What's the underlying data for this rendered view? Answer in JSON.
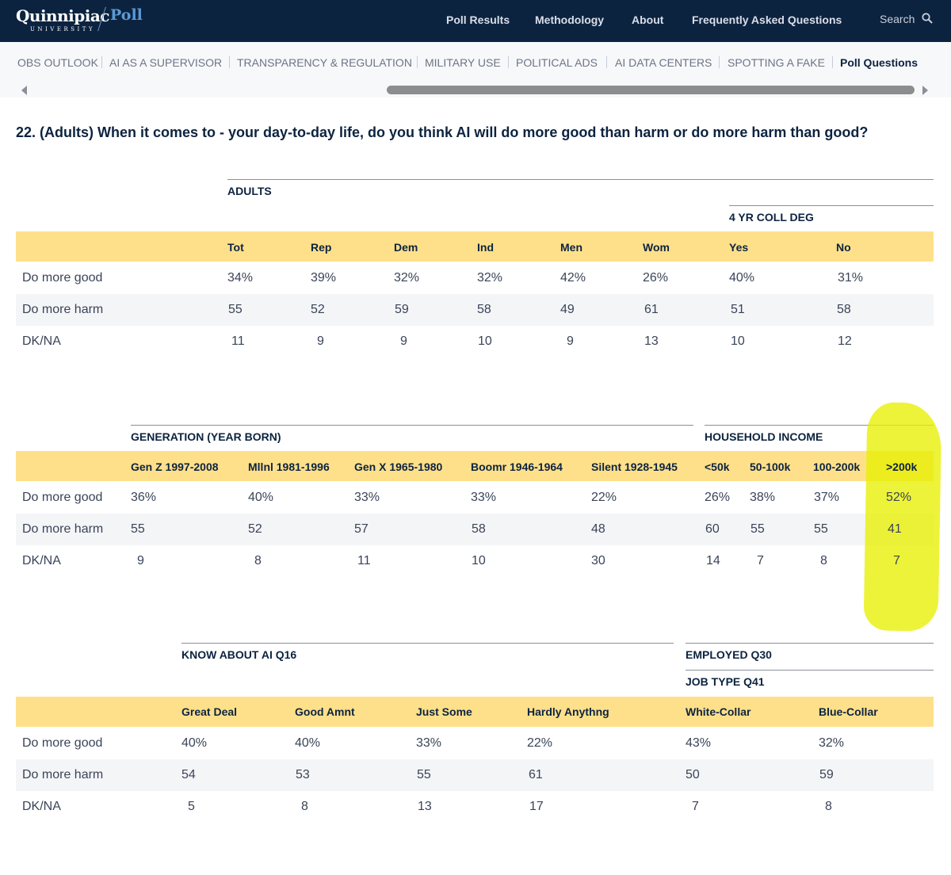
{
  "header": {
    "logo_text": "Quinnipiac",
    "logo_sub": "UNIVERSITY",
    "logo_poll": "Poll",
    "nav": [
      "Poll Results",
      "Methodology",
      "About",
      "Frequently Asked Questions"
    ],
    "search_label": "Search"
  },
  "tabs": {
    "items": [
      "JOBS OUTLOOK",
      "AI AS A SUPERVISOR",
      "TRANSPARENCY & REGULATION",
      "MILITARY USE",
      "POLITICAL ADS",
      "AI DATA CENTERS",
      "SPOTTING A FAKE",
      "Poll Questions"
    ],
    "first_visible": "OBS OUTLOOK",
    "active": "Poll Questions"
  },
  "question": "22. (Adults) When it comes to - your day-to-day life, do you think AI will do more good than harm or do more harm than good?",
  "rows": [
    "Do more good",
    "Do more harm",
    "DK/NA"
  ],
  "table1": {
    "group1": "ADULTS",
    "group2": "4 YR COLL DEG",
    "columns": [
      "Tot",
      "Rep",
      "Dem",
      "Ind",
      "Men",
      "Wom",
      "Yes",
      "No"
    ],
    "values": [
      [
        "34%",
        "39%",
        "32%",
        "32%",
        "42%",
        "26%",
        "40%",
        "31%"
      ],
      [
        "55",
        "52",
        "59",
        "58",
        "49",
        "61",
        "51",
        "58"
      ],
      [
        "11",
        "9",
        "9",
        "10",
        "9",
        "13",
        "10",
        "12"
      ]
    ]
  },
  "table2": {
    "group1": "GENERATION (YEAR BORN)",
    "group2": "HOUSEHOLD INCOME",
    "columns": [
      "Gen Z 1997-2008",
      "Mllnl 1981-1996",
      "Gen X 1965-1980",
      "Boomr 1946-1964",
      "Silent 1928-1945",
      "<50k",
      "50-100k",
      "100-200k",
      ">200k"
    ],
    "values": [
      [
        "36%",
        "40%",
        "33%",
        "33%",
        "22%",
        "26%",
        "38%",
        "37%",
        "52%"
      ],
      [
        "55",
        "52",
        "57",
        "58",
        "48",
        "60",
        "55",
        "55",
        "41"
      ],
      [
        "9",
        "8",
        "11",
        "10",
        "30",
        "14",
        "7",
        "8",
        "7"
      ]
    ],
    "highlight_color": "#e8f000"
  },
  "table3": {
    "group1": "KNOW ABOUT AI Q16",
    "group2": "EMPLOYED Q30",
    "group3": "JOB TYPE Q41",
    "columns": [
      "Great Deal",
      "Good Amnt",
      "Just Some",
      "Hardly Anythng",
      "White-Collar",
      "Blue-Collar"
    ],
    "values": [
      [
        "40%",
        "40%",
        "33%",
        "22%",
        "43%",
        "32%"
      ],
      [
        "54",
        "53",
        "55",
        "61",
        "50",
        "59"
      ],
      [
        "5",
        "8",
        "13",
        "17",
        "7",
        "8"
      ]
    ]
  }
}
